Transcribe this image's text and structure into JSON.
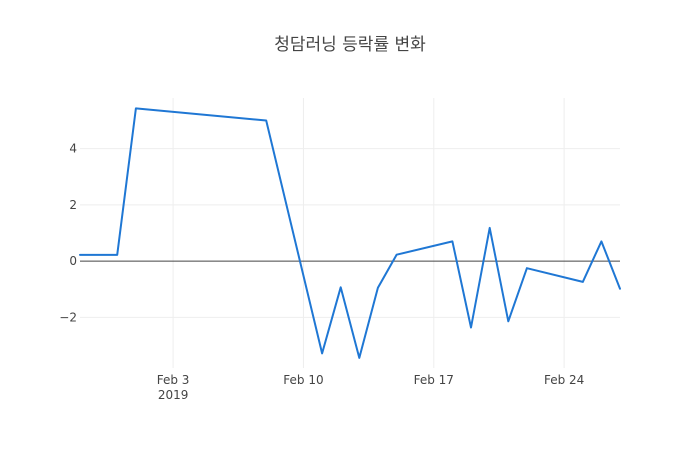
{
  "chart_data": {
    "type": "line",
    "title": "청담러닝 등락률 변화",
    "xlabel": "",
    "ylabel": "",
    "x_ticks": [
      "Feb 3",
      "Feb 10",
      "Feb 17",
      "Feb 24"
    ],
    "x_tick_dates": [
      "2019-02-03",
      "2019-02-10",
      "2019-02-17",
      "2019-02-24"
    ],
    "x_year_label": "2019",
    "y_ticks": [
      4,
      2,
      0,
      -2
    ],
    "xlim": [
      "2019-01-29",
      "2019-02-27"
    ],
    "ylim": [
      -3.8,
      5.8
    ],
    "grid": true,
    "line_color": "#1f77d4",
    "series": [
      {
        "x": [
          "2019-01-29",
          "2019-01-31",
          "2019-02-01",
          "2019-02-08",
          "2019-02-11",
          "2019-02-12",
          "2019-02-13",
          "2019-02-14",
          "2019-02-15",
          "2019-02-18",
          "2019-02-19",
          "2019-02-20",
          "2019-02-21",
          "2019-02-22",
          "2019-02-25",
          "2019-02-26",
          "2019-02-27"
        ],
        "y": [
          0.22,
          0.22,
          5.43,
          5.0,
          -3.28,
          -0.93,
          -3.44,
          -0.95,
          0.23,
          0.7,
          -2.36,
          1.18,
          -2.14,
          -0.25,
          -0.74,
          0.7,
          -0.98
        ]
      }
    ]
  }
}
